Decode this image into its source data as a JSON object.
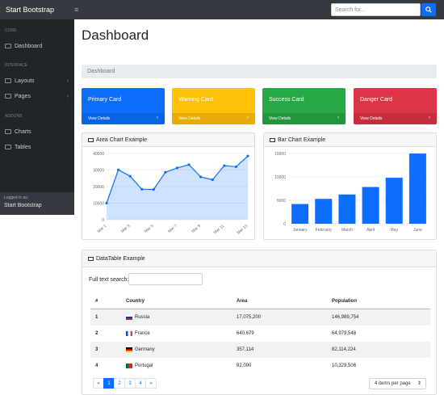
{
  "topbar": {
    "brand": "Start Bootstrap",
    "toggle_icon": "≡",
    "search_placeholder": "Search for..."
  },
  "sidebar": {
    "sections": [
      {
        "label": "CORE"
      },
      {
        "label": "INTERFACE"
      },
      {
        "label": "ADDONS"
      }
    ],
    "items": [
      {
        "label": "Dashboard"
      },
      {
        "label": "Layouts"
      },
      {
        "label": "Pages"
      },
      {
        "label": "Charts"
      },
      {
        "label": "Tables"
      }
    ],
    "footer_small": "Logged in as:",
    "footer_name": "Start Bootstrap"
  },
  "page": {
    "title": "Dashboard",
    "breadcrumb": "Dashboard"
  },
  "cards": [
    {
      "title": "Primary Card",
      "link": "View Details",
      "color": "#0d6efd"
    },
    {
      "title": "Warning Card",
      "link": "View Details",
      "color": "#ffc107"
    },
    {
      "title": "Success Card",
      "link": "View Details",
      "color": "#28a745"
    },
    {
      "title": "Danger Card",
      "link": "View Details",
      "color": "#dc3545"
    }
  ],
  "area_panel": {
    "title": "Area Chart Example"
  },
  "bar_panel": {
    "title": "Bar Chart Example"
  },
  "chart_data": [
    {
      "type": "area",
      "title": "Area Chart Example",
      "x": [
        "Mar 1",
        "Mar 2",
        "Mar 3",
        "Mar 4",
        "Mar 5",
        "Mar 6",
        "Mar 7",
        "Mar 8",
        "Mar 9",
        "Mar 10",
        "Mar 11",
        "Mar 12",
        "Mar 13"
      ],
      "x_tick_labels": [
        "Mar 1",
        "Mar 3",
        "Mar 5",
        "Mar 7",
        "Mar 9",
        "Mar 11",
        "Mar 13"
      ],
      "values": [
        10000,
        30162,
        26263,
        18394,
        18287,
        28682,
        31274,
        33259,
        25849,
        24159,
        32651,
        31984,
        38451
      ],
      "ylim": [
        0,
        40000
      ],
      "yticks": [
        "0",
        "10000",
        "20000",
        "30000",
        "40000"
      ]
    },
    {
      "type": "bar",
      "title": "Bar Chart Example",
      "categories": [
        "January",
        "February",
        "March",
        "April",
        "May",
        "June"
      ],
      "values": [
        4215,
        5312,
        6251,
        7841,
        9821,
        14984
      ],
      "ylim": [
        0,
        15000
      ],
      "yticks": [
        "0",
        "5000",
        "10000",
        "15000"
      ]
    }
  ],
  "table_panel": {
    "title": "DataTable Example",
    "search_label": "Full text search:",
    "search_value": ""
  },
  "table": {
    "headers": [
      "#",
      "Country",
      "Area",
      "Population"
    ],
    "rows": [
      {
        "n": "1",
        "country": "Russia",
        "area": "17,075,200",
        "pop": "146,989,754",
        "flag": "russia"
      },
      {
        "n": "2",
        "country": "France",
        "area": "640,679",
        "pop": "64,979,548",
        "flag": "france"
      },
      {
        "n": "3",
        "country": "Germany",
        "area": "357,114",
        "pop": "82,114,224",
        "flag": "germany"
      },
      {
        "n": "4",
        "country": "Portugal",
        "area": "92,090",
        "pop": "10,329,506",
        "flag": "portugal"
      }
    ]
  },
  "pager": {
    "prev": "«",
    "pages": [
      "1",
      "2",
      "3",
      "4"
    ],
    "next": "»",
    "per_page": "4 items per page"
  }
}
